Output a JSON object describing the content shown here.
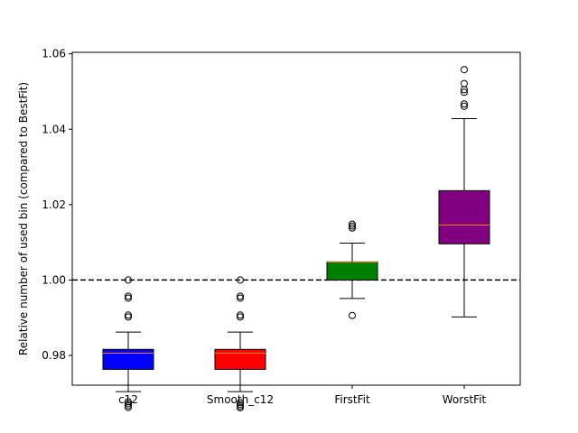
{
  "chart_data": {
    "type": "box",
    "title": "",
    "xlabel": "",
    "ylabel": "Relative number of used bin (compared to BestFit)",
    "ylim": [
      0.9721,
      1.0604
    ],
    "yticks": [
      0.98,
      1.0,
      1.02,
      1.04,
      1.06
    ],
    "ytick_labels": [
      "0.98",
      "1.00",
      "1.02",
      "1.04",
      "1.06"
    ],
    "reference_line": {
      "y": 1.0,
      "style": "dashed",
      "color": "#000000"
    },
    "median_color": "#ff7f0e",
    "categories": [
      "c12",
      "Smooth_c12",
      "FirstFit",
      "WorstFit"
    ],
    "boxes": [
      {
        "label": "c12",
        "color": "#0000ff",
        "whisker_low": 0.9704,
        "q1": 0.9763,
        "median": 0.9806,
        "q3": 0.9816,
        "whisker_high": 0.9862,
        "outliers": [
          0.9662,
          0.9667,
          0.9672,
          0.9677,
          0.9902,
          0.9907,
          0.9952,
          0.9957,
          1.0
        ]
      },
      {
        "label": "Smooth_c12",
        "color": "#ff0000",
        "whisker_low": 0.9704,
        "q1": 0.9763,
        "median": 0.9806,
        "q3": 0.9816,
        "whisker_high": 0.9862,
        "outliers": [
          0.9661,
          0.9665,
          0.967,
          0.9675,
          0.9902,
          0.9907,
          0.9952,
          0.9957,
          1.0
        ]
      },
      {
        "label": "FirstFit",
        "color": "#008000",
        "whisker_low": 0.9951,
        "q1": 1.0,
        "median": 1.0048,
        "q3": 1.0048,
        "whisker_high": 1.0098,
        "outliers": [
          0.9906,
          1.0138,
          1.0143,
          1.0148
        ]
      },
      {
        "label": "WorstFit",
        "color": "#800080",
        "whisker_low": 0.9902,
        "q1": 1.0096,
        "median": 1.0146,
        "q3": 1.0237,
        "whisker_high": 1.0428,
        "outliers": [
          1.0461,
          1.0467,
          1.0498,
          1.0505,
          1.0521,
          1.0558
        ]
      }
    ]
  }
}
